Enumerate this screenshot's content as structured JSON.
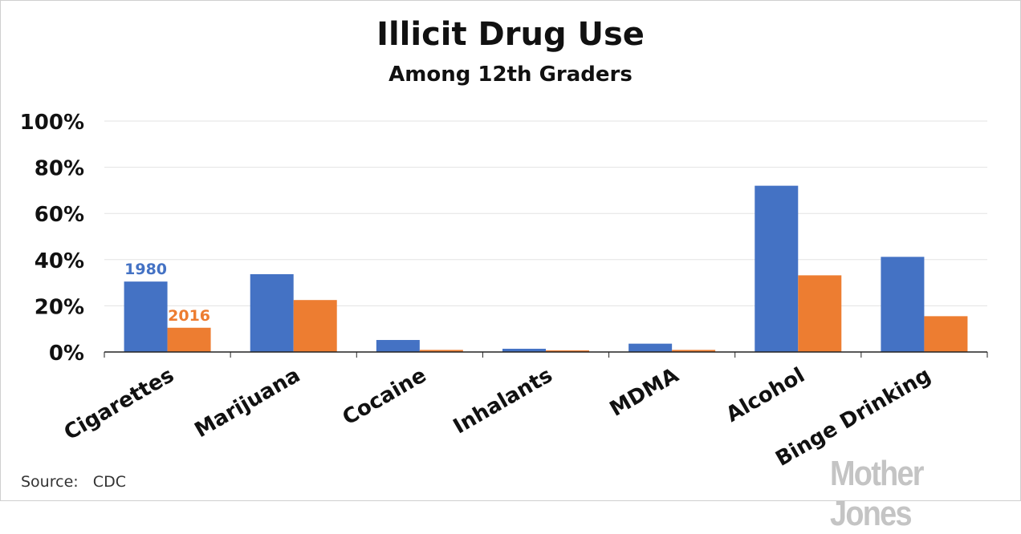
{
  "title": "Illicit Drug Use",
  "subtitle": "Among 12th Graders",
  "source_label": "Source:",
  "source_value": "CDC",
  "logo_text": "Mother Jones",
  "chart_data": {
    "type": "bar",
    "title": "Illicit Drug Use",
    "subtitle": "Among 12th Graders",
    "categories": [
      "Cigarettes",
      "Marijuana",
      "Cocaine",
      "Inhalants",
      "MDMA",
      "Alcohol",
      "Binge Drinking"
    ],
    "series": [
      {
        "name": "1980",
        "color": "#4472c4",
        "values": [
          30.5,
          33.7,
          5.2,
          1.4,
          3.6,
          72.0,
          41.2
        ]
      },
      {
        "name": "2016",
        "color": "#ed7d31",
        "values": [
          10.5,
          22.5,
          0.9,
          0.7,
          0.9,
          33.2,
          15.5
        ]
      }
    ],
    "ylim": [
      0,
      100
    ],
    "yticks": [
      0,
      20,
      40,
      60,
      80,
      100
    ],
    "ytick_labels": [
      "0%",
      "20%",
      "40%",
      "60%",
      "80%",
      "100%"
    ],
    "grid": true,
    "legend": "inline labels on Cigarettes bars"
  }
}
